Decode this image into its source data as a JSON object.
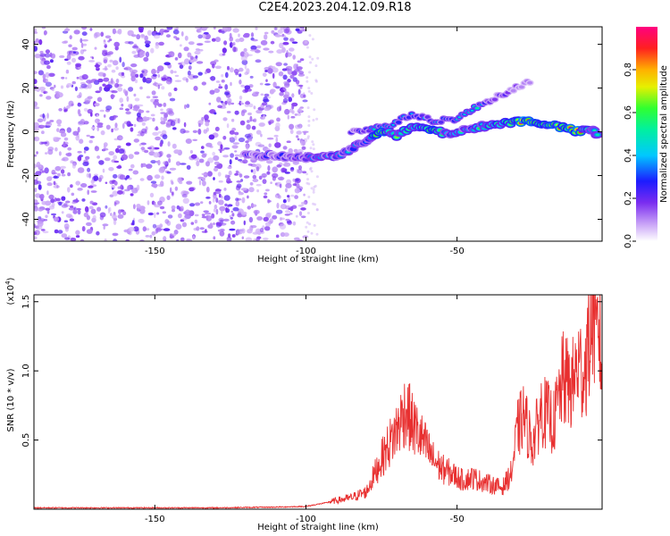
{
  "title": "C2E4.2023.204.12.09.R18",
  "colors": {
    "snr_line": "#e83030",
    "noise_purple": "#7a2cf0",
    "axis": "#000000"
  },
  "chart_data": [
    {
      "type": "heatmap",
      "xlabel": "Height of straight line (km)",
      "ylabel": "Frequency (Hz)",
      "xlim": [
        -190,
        -2
      ],
      "ylim": [
        -50,
        48
      ],
      "xticks": [
        -150,
        -100,
        -50
      ],
      "xtick_labels": [
        "-150",
        "-100",
        "-50"
      ],
      "yticks": [
        -40,
        -20,
        0,
        20,
        40
      ],
      "ytick_labels": [
        "-40",
        "-20",
        "0",
        "20",
        "40"
      ],
      "grid": false,
      "colorbar": {
        "label": "Normalized spectral amplitude",
        "range": [
          0.0,
          1.0
        ],
        "ticks": [
          0.0,
          0.2,
          0.4,
          0.6,
          0.8
        ],
        "tick_labels": [
          "0.0",
          "0.2",
          "0.4",
          "0.6",
          "0.8"
        ],
        "colormap": "rainbow (white-violet-blue-cyan-green-yellow-red-magenta)"
      },
      "noise_region_x": [
        -190,
        -100
      ],
      "signal_trace": [
        {
          "x": -120,
          "y": -11,
          "amp": 0.25
        },
        {
          "x": -112,
          "y": -11,
          "amp": 0.3
        },
        {
          "x": -100,
          "y": -12,
          "amp": 0.35
        },
        {
          "x": -95,
          "y": -11,
          "amp": 0.4
        },
        {
          "x": -90,
          "y": -11,
          "amp": 0.45
        },
        {
          "x": -86,
          "y": -9,
          "amp": 0.35
        },
        {
          "x": -80,
          "y": -4,
          "amp": 0.45
        },
        {
          "x": -75,
          "y": 1,
          "amp": 0.85
        },
        {
          "x": -70,
          "y": -2,
          "amp": 0.55
        },
        {
          "x": -65,
          "y": 2,
          "amp": 0.6
        },
        {
          "x": -58,
          "y": 1,
          "amp": 0.85
        },
        {
          "x": -54,
          "y": -1,
          "amp": 0.5
        },
        {
          "x": -46,
          "y": 1,
          "amp": 0.45
        },
        {
          "x": -40,
          "y": 3,
          "amp": 0.55
        },
        {
          "x": -34,
          "y": 4,
          "amp": 0.7
        },
        {
          "x": -28,
          "y": 5,
          "amp": 0.95
        },
        {
          "x": -22,
          "y": 4,
          "amp": 0.75
        },
        {
          "x": -15,
          "y": 2,
          "amp": 0.85
        },
        {
          "x": -10,
          "y": 0,
          "amp": 0.9
        },
        {
          "x": -5,
          "y": 1,
          "amp": 0.45
        },
        {
          "x": -3,
          "y": -3,
          "amp": 0.5
        }
      ],
      "upper_trace": [
        {
          "x": -85,
          "y": 0,
          "amp": 0.3
        },
        {
          "x": -80,
          "y": 1,
          "amp": 0.4
        },
        {
          "x": -72,
          "y": 3,
          "amp": 0.45
        },
        {
          "x": -65,
          "y": 8,
          "amp": 0.45
        },
        {
          "x": -58,
          "y": 5,
          "amp": 0.4
        },
        {
          "x": -50,
          "y": 6,
          "amp": 0.35
        },
        {
          "x": -45,
          "y": 10,
          "amp": 0.5
        },
        {
          "x": -40,
          "y": 14,
          "amp": 0.3
        },
        {
          "x": -35,
          "y": 17,
          "amp": 0.2
        },
        {
          "x": -25,
          "y": 24,
          "amp": 0.15
        }
      ]
    },
    {
      "type": "line",
      "xlabel": "Height of straight line (km)",
      "ylabel": "SNR (10 * v/v)",
      "multiplier_label": "(x10",
      "multiplier_exp": "4",
      "multiplier_close": ")",
      "xlim": [
        -190,
        -2
      ],
      "ylim": [
        0,
        1.55
      ],
      "xticks": [
        -150,
        -100,
        -50
      ],
      "xtick_labels": [
        "-150",
        "-100",
        "-50"
      ],
      "yticks": [
        0.5,
        1.0,
        1.5
      ],
      "ytick_labels": [
        "0.5",
        "1.0",
        "1.5"
      ],
      "grid": false,
      "series": [
        {
          "color": "#e83030",
          "x": [
            -190,
            -170,
            -150,
            -130,
            -110,
            -100,
            -95,
            -90,
            -85,
            -80,
            -75,
            -70,
            -67,
            -65,
            -62,
            -58,
            -55,
            -52,
            -48,
            -45,
            -40,
            -35,
            -32,
            -30,
            -28,
            -25,
            -22,
            -18,
            -15,
            -12,
            -10,
            -8,
            -6,
            -5,
            -4,
            -3,
            -2
          ],
          "y": [
            0.01,
            0.01,
            0.01,
            0.01,
            0.015,
            0.02,
            0.04,
            0.06,
            0.08,
            0.12,
            0.35,
            0.55,
            0.7,
            0.6,
            0.5,
            0.35,
            0.28,
            0.25,
            0.2,
            0.22,
            0.18,
            0.15,
            0.25,
            0.55,
            0.65,
            0.45,
            0.7,
            0.6,
            0.9,
            0.85,
            1.0,
            0.95,
            1.2,
            1.45,
            1.1,
            1.3,
            0.9
          ]
        }
      ]
    }
  ]
}
